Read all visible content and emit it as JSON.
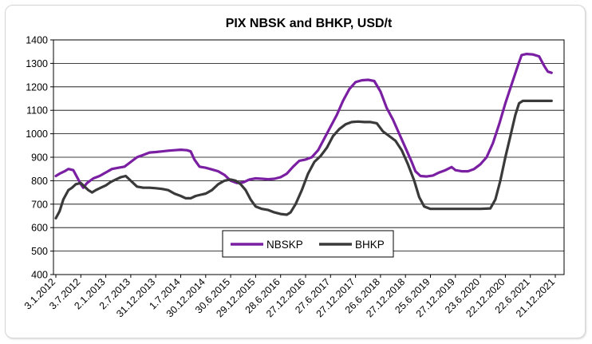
{
  "chart_data": {
    "type": "line",
    "title": "PIX NBSK and BHKP, USD/t",
    "xlabel": "",
    "ylabel": "",
    "ylim": [
      400,
      1400
    ],
    "yticks": [
      400,
      500,
      600,
      700,
      800,
      900,
      1000,
      1100,
      1200,
      1300,
      1400
    ],
    "grid": "horizontal",
    "legend": "bottom-center",
    "x_tick_labels": [
      "3.1.2012",
      "3.7.2012",
      "2.1.2013",
      "2.7.2013",
      "31.12.2013",
      "1.7.2014",
      "30.12.2014",
      "30.6.2015",
      "29.12.2015",
      "28.6.2016",
      "27.12.2016",
      "27.6.2017",
      "27.12.2017",
      "26.6.2018",
      "27.12.2018",
      "25.6.2019",
      "27.12.2019",
      "23.6.2020",
      "22.12.2020",
      "22.6.2021",
      "21.12.2021"
    ],
    "x_step_label": "half-year",
    "series": [
      {
        "name": "NBSKP",
        "color": "#7a1fa2",
        "points": [
          [
            0.0,
            820
          ],
          [
            0.15,
            830
          ],
          [
            0.35,
            840
          ],
          [
            0.5,
            850
          ],
          [
            0.7,
            845
          ],
          [
            0.85,
            815
          ],
          [
            1.0,
            785
          ],
          [
            1.1,
            770
          ],
          [
            1.25,
            790
          ],
          [
            1.5,
            810
          ],
          [
            1.75,
            820
          ],
          [
            2.0,
            835
          ],
          [
            2.25,
            850
          ],
          [
            2.5,
            855
          ],
          [
            2.75,
            860
          ],
          [
            3.0,
            880
          ],
          [
            3.25,
            900
          ],
          [
            3.5,
            910
          ],
          [
            3.75,
            920
          ],
          [
            4.0,
            922
          ],
          [
            4.25,
            925
          ],
          [
            4.5,
            928
          ],
          [
            4.75,
            930
          ],
          [
            5.0,
            932
          ],
          [
            5.25,
            930
          ],
          [
            5.4,
            925
          ],
          [
            5.55,
            890
          ],
          [
            5.75,
            860
          ],
          [
            6.0,
            855
          ],
          [
            6.25,
            848
          ],
          [
            6.5,
            840
          ],
          [
            6.75,
            825
          ],
          [
            7.0,
            800
          ],
          [
            7.25,
            790
          ],
          [
            7.5,
            793
          ],
          [
            7.75,
            805
          ],
          [
            8.0,
            810
          ],
          [
            8.25,
            808
          ],
          [
            8.5,
            806
          ],
          [
            8.75,
            808
          ],
          [
            9.0,
            815
          ],
          [
            9.25,
            830
          ],
          [
            9.5,
            860
          ],
          [
            9.75,
            885
          ],
          [
            10.0,
            890
          ],
          [
            10.25,
            900
          ],
          [
            10.5,
            930
          ],
          [
            10.75,
            980
          ],
          [
            11.0,
            1030
          ],
          [
            11.25,
            1080
          ],
          [
            11.5,
            1140
          ],
          [
            11.75,
            1190
          ],
          [
            12.0,
            1220
          ],
          [
            12.25,
            1228
          ],
          [
            12.5,
            1230
          ],
          [
            12.75,
            1225
          ],
          [
            13.0,
            1180
          ],
          [
            13.25,
            1110
          ],
          [
            13.5,
            1060
          ],
          [
            13.75,
            1000
          ],
          [
            14.0,
            940
          ],
          [
            14.25,
            880
          ],
          [
            14.4,
            840
          ],
          [
            14.6,
            820
          ],
          [
            14.85,
            818
          ],
          [
            15.1,
            822
          ],
          [
            15.35,
            835
          ],
          [
            15.6,
            845
          ],
          [
            15.85,
            858
          ],
          [
            16.0,
            845
          ],
          [
            16.25,
            840
          ],
          [
            16.5,
            840
          ],
          [
            16.75,
            850
          ],
          [
            17.0,
            870
          ],
          [
            17.25,
            900
          ],
          [
            17.5,
            960
          ],
          [
            17.75,
            1040
          ],
          [
            18.0,
            1130
          ],
          [
            18.25,
            1210
          ],
          [
            18.5,
            1290
          ],
          [
            18.65,
            1335
          ],
          [
            18.85,
            1340
          ],
          [
            19.1,
            1338
          ],
          [
            19.35,
            1330
          ],
          [
            19.55,
            1290
          ],
          [
            19.7,
            1265
          ],
          [
            19.85,
            1260
          ]
        ]
      },
      {
        "name": "BHKP",
        "color": "#3a3a3a",
        "points": [
          [
            0.0,
            640
          ],
          [
            0.15,
            670
          ],
          [
            0.3,
            720
          ],
          [
            0.5,
            760
          ],
          [
            0.65,
            770
          ],
          [
            0.8,
            785
          ],
          [
            1.0,
            790
          ],
          [
            1.15,
            775
          ],
          [
            1.3,
            760
          ],
          [
            1.45,
            750
          ],
          [
            1.6,
            760
          ],
          [
            1.8,
            770
          ],
          [
            2.0,
            780
          ],
          [
            2.2,
            795
          ],
          [
            2.4,
            805
          ],
          [
            2.6,
            815
          ],
          [
            2.8,
            820
          ],
          [
            3.0,
            800
          ],
          [
            3.25,
            775
          ],
          [
            3.5,
            770
          ],
          [
            3.75,
            770
          ],
          [
            4.0,
            768
          ],
          [
            4.25,
            765
          ],
          [
            4.5,
            760
          ],
          [
            4.75,
            745
          ],
          [
            5.0,
            735
          ],
          [
            5.2,
            725
          ],
          [
            5.4,
            725
          ],
          [
            5.6,
            735
          ],
          [
            5.8,
            740
          ],
          [
            6.0,
            745
          ],
          [
            6.25,
            760
          ],
          [
            6.5,
            785
          ],
          [
            6.75,
            800
          ],
          [
            7.0,
            805
          ],
          [
            7.2,
            800
          ],
          [
            7.4,
            785
          ],
          [
            7.6,
            760
          ],
          [
            7.8,
            720
          ],
          [
            8.0,
            690
          ],
          [
            8.25,
            680
          ],
          [
            8.5,
            675
          ],
          [
            8.75,
            665
          ],
          [
            9.0,
            658
          ],
          [
            9.25,
            655
          ],
          [
            9.4,
            665
          ],
          [
            9.6,
            700
          ],
          [
            9.85,
            760
          ],
          [
            10.1,
            830
          ],
          [
            10.35,
            880
          ],
          [
            10.6,
            905
          ],
          [
            10.85,
            940
          ],
          [
            11.1,
            990
          ],
          [
            11.35,
            1020
          ],
          [
            11.6,
            1040
          ],
          [
            11.85,
            1050
          ],
          [
            12.1,
            1052
          ],
          [
            12.35,
            1050
          ],
          [
            12.6,
            1050
          ],
          [
            12.85,
            1045
          ],
          [
            13.1,
            1010
          ],
          [
            13.35,
            990
          ],
          [
            13.6,
            970
          ],
          [
            13.85,
            930
          ],
          [
            14.1,
            870
          ],
          [
            14.35,
            800
          ],
          [
            14.55,
            730
          ],
          [
            14.75,
            690
          ],
          [
            15.0,
            680
          ],
          [
            15.5,
            680
          ],
          [
            16.0,
            680
          ],
          [
            16.5,
            680
          ],
          [
            17.0,
            680
          ],
          [
            17.4,
            682
          ],
          [
            17.6,
            720
          ],
          [
            17.8,
            800
          ],
          [
            18.0,
            900
          ],
          [
            18.2,
            990
          ],
          [
            18.4,
            1080
          ],
          [
            18.55,
            1130
          ],
          [
            18.7,
            1140
          ],
          [
            19.0,
            1140
          ],
          [
            19.5,
            1140
          ],
          [
            19.85,
            1140
          ]
        ]
      }
    ]
  }
}
